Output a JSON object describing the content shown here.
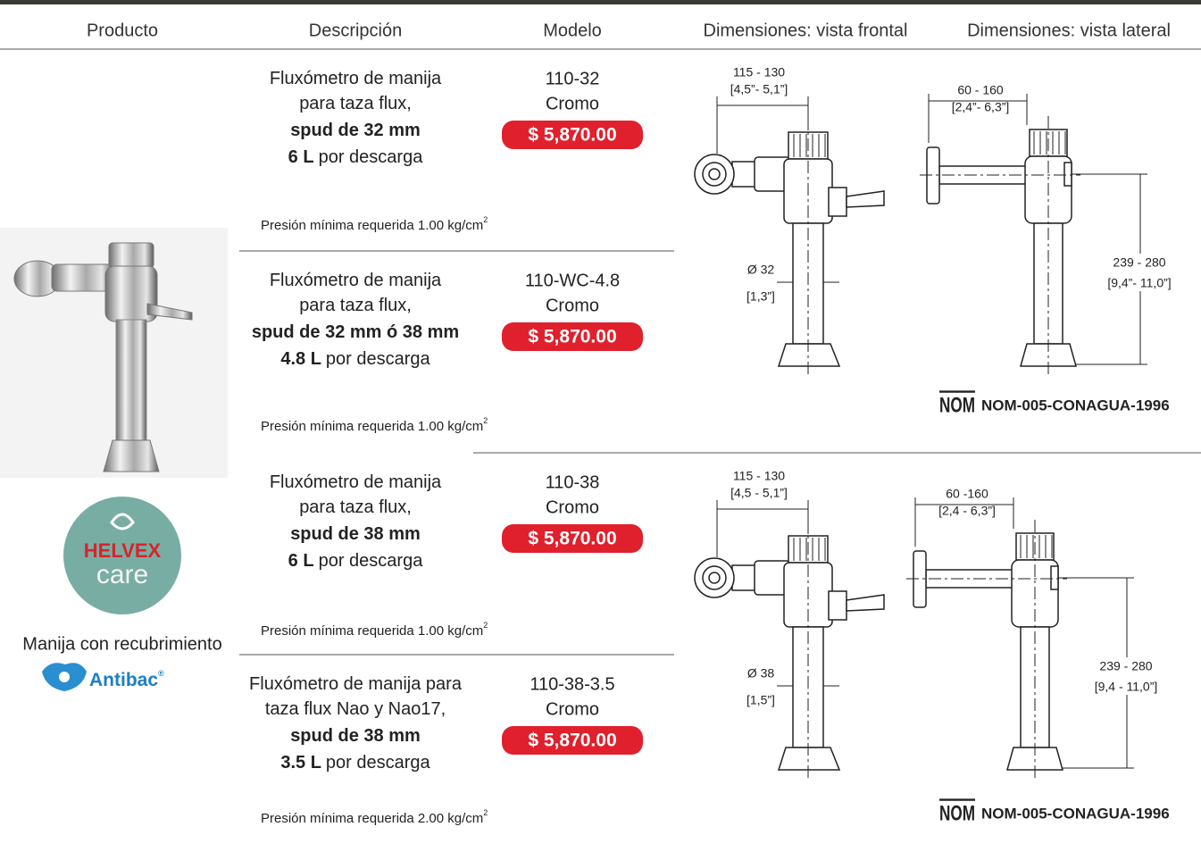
{
  "header": {
    "columns": [
      "Producto",
      "Descripción",
      "Modelo",
      "Dimensiones: vista frontal",
      "Dimensiones: vista lateral"
    ]
  },
  "products": [
    {
      "description": [
        {
          "text": "Fluxómetro de manija"
        },
        {
          "text": "para taza flux,"
        },
        {
          "bold": "spud de 32 mm"
        },
        {
          "bold": "6 L",
          "text": "por descarga"
        }
      ],
      "model": "110-32",
      "finish": "Cromo",
      "price": "$ 5,870.00",
      "pressure": "Presión mínima requerida 1.00 kg/cm",
      "pressure_sup": "2"
    },
    {
      "description": [
        {
          "text": "Fluxómetro de manija"
        },
        {
          "text": "para taza flux,"
        },
        {
          "bold": "spud de 32 mm ó 38 mm"
        },
        {
          "bold": "4.8 L",
          "text": "por descarga"
        }
      ],
      "model": "110-WC-4.8",
      "finish": "Cromo",
      "price": "$ 5,870.00",
      "pressure": "Presión mínima requerida 1.00 kg/cm",
      "pressure_sup": "2"
    },
    {
      "description": [
        {
          "text": "Fluxómetro de manija"
        },
        {
          "text": "para taza flux,"
        },
        {
          "bold": "spud de 38 mm"
        },
        {
          "bold": "6 L",
          "text": "por descarga"
        }
      ],
      "model": "110-38",
      "finish": "Cromo",
      "price": "$ 5,870.00",
      "pressure": "Presión mínima requerida 1.00 kg/cm",
      "pressure_sup": "2"
    },
    {
      "description": [
        {
          "text": "Fluxómetro de manija para"
        },
        {
          "text": "taza flux Nao y Nao17,"
        },
        {
          "bold": "spud de 38 mm"
        },
        {
          "bold": "3.5 L",
          "text": "por descarga"
        }
      ],
      "model": "110-38-3.5",
      "finish": "Cromo",
      "price": "$ 5,870.00",
      "pressure": "Presión mínima requerida 2.00 kg/cm",
      "pressure_sup": "2"
    }
  ],
  "drawings": [
    {
      "front": {
        "width": "115 - 130",
        "width_in": "[4,5”- 5,1”]",
        "diameter": "Ø 32",
        "diameter_in": "[1,3”]"
      },
      "side": {
        "depth": "60 - 160",
        "depth_in": "[2,4”- 6,3”]",
        "height": "239 - 280",
        "height_in": "[9,4”- 11,0”]"
      },
      "nom_logo": "NOM",
      "nom": "NOM-005-CONAGUA-1996"
    },
    {
      "front": {
        "width": "115 - 130",
        "width_in": "[4,5 - 5,1”]",
        "diameter": "Ø 38",
        "diameter_in": "[1,5”]"
      },
      "side": {
        "depth": "60 -160",
        "depth_in": "[2,4 - 6,3”]",
        "height": "239 - 280",
        "height_in": "[9,4 - 11,0”]"
      },
      "nom_logo": "NOM",
      "nom": "NOM-005-CONAGUA-1996"
    }
  ],
  "sidebar": {
    "badge_brand": "HELVEX",
    "badge_word": "care",
    "caption": "Manija con recubrimiento",
    "antibac": "Antibac",
    "registered": "®"
  }
}
